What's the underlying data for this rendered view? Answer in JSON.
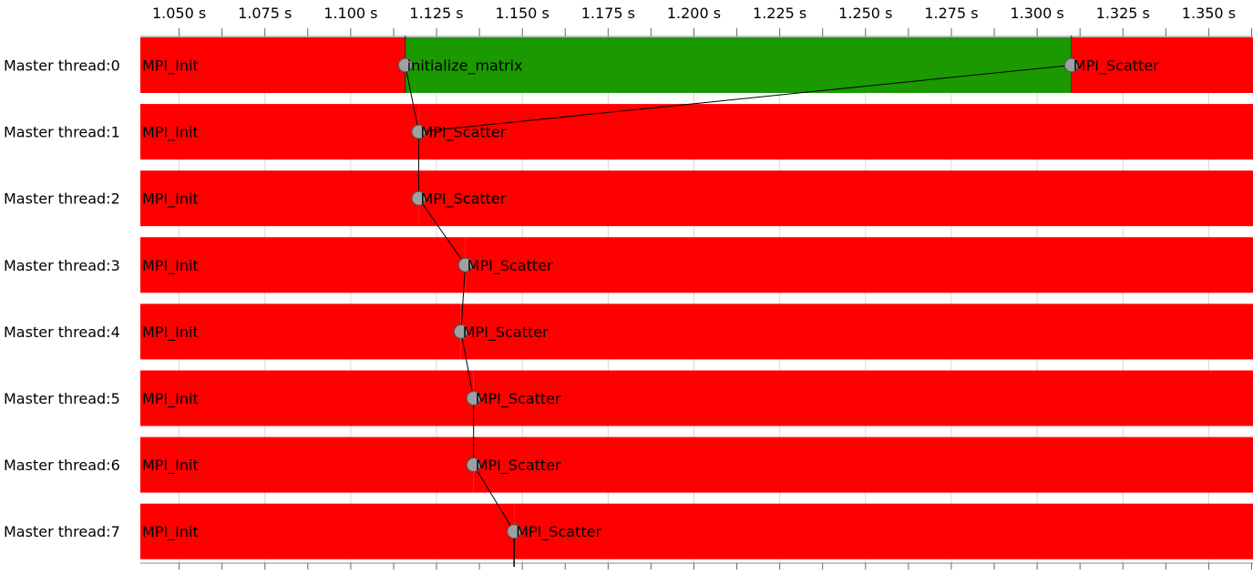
{
  "timeline": {
    "axis": {
      "tick_labels": [
        "1.050 s",
        "1.075 s",
        "1.100 s",
        "1.125 s",
        "1.150 s",
        "1.175 s",
        "1.200 s",
        "1.225 s",
        "1.250 s",
        "1.275 s",
        "1.300 s",
        "1.325 s",
        "1.350 s"
      ],
      "tick_values": [
        1.05,
        1.075,
        1.1,
        1.125,
        1.15,
        1.175,
        1.2,
        1.225,
        1.25,
        1.275,
        1.3,
        1.325,
        1.35
      ],
      "range": [
        1.0387,
        1.3629
      ],
      "minor_step": 0.0125
    },
    "colors": {
      "mpi": "#ff0000",
      "compute": "#1a9900",
      "marker_fill": "#a0a0a0",
      "marker_stroke": "#555555",
      "line": "#000000",
      "gridline": "#d8d8d8"
    },
    "threads": [
      {
        "label": "Master thread:0",
        "segments": [
          {
            "name": "MPI_Init",
            "start": 1.0387,
            "end": 1.1159,
            "kind": "mpi"
          },
          {
            "name": "initialize_matrix",
            "start": 1.1159,
            "end": 1.31,
            "kind": "compute"
          },
          {
            "name": "MPI_Scatter",
            "start": 1.31,
            "end": 1.3629,
            "kind": "mpi"
          }
        ]
      },
      {
        "label": "Master thread:1",
        "segments": [
          {
            "name": "MPI_Init",
            "start": 1.0387,
            "end": 1.1198,
            "kind": "mpi"
          },
          {
            "name": "MPI_Scatter",
            "start": 1.1198,
            "end": 1.3629,
            "kind": "mpi"
          }
        ]
      },
      {
        "label": "Master thread:2",
        "segments": [
          {
            "name": "MPI_Init",
            "start": 1.0387,
            "end": 1.1198,
            "kind": "mpi"
          },
          {
            "name": "MPI_Scatter",
            "start": 1.1198,
            "end": 1.3629,
            "kind": "mpi"
          }
        ]
      },
      {
        "label": "Master thread:3",
        "segments": [
          {
            "name": "MPI_Init",
            "start": 1.0387,
            "end": 1.1334,
            "kind": "mpi"
          },
          {
            "name": "MPI_Scatter",
            "start": 1.1334,
            "end": 1.3629,
            "kind": "mpi"
          }
        ]
      },
      {
        "label": "Master thread:4",
        "segments": [
          {
            "name": "MPI_Init",
            "start": 1.0387,
            "end": 1.1321,
            "kind": "mpi"
          },
          {
            "name": "MPI_Scatter",
            "start": 1.1321,
            "end": 1.3629,
            "kind": "mpi"
          }
        ]
      },
      {
        "label": "Master thread:5",
        "segments": [
          {
            "name": "MPI_Init",
            "start": 1.0387,
            "end": 1.1358,
            "kind": "mpi"
          },
          {
            "name": "MPI_Scatter",
            "start": 1.1358,
            "end": 1.3629,
            "kind": "mpi"
          }
        ]
      },
      {
        "label": "Master thread:6",
        "segments": [
          {
            "name": "MPI_Init",
            "start": 1.0387,
            "end": 1.1358,
            "kind": "mpi"
          },
          {
            "name": "MPI_Scatter",
            "start": 1.1358,
            "end": 1.3629,
            "kind": "mpi"
          }
        ]
      },
      {
        "label": "Master thread:7",
        "segments": [
          {
            "name": "MPI_Init",
            "start": 1.0387,
            "end": 1.1476,
            "kind": "mpi"
          },
          {
            "name": "MPI_Scatter",
            "start": 1.1476,
            "end": 1.3629,
            "kind": "mpi"
          }
        ]
      }
    ],
    "message_path": [
      {
        "thread": 0,
        "time": 1.1159
      },
      {
        "thread": 1,
        "time": 1.1198
      },
      {
        "thread": 0,
        "time": 1.31
      },
      {
        "thread": 1,
        "time": 1.1198
      },
      {
        "thread": 2,
        "time": 1.1198
      },
      {
        "thread": 3,
        "time": 1.1334
      },
      {
        "thread": 4,
        "time": 1.1321
      },
      {
        "thread": 5,
        "time": 1.1358
      },
      {
        "thread": 6,
        "time": 1.1358
      },
      {
        "thread": 7,
        "time": 1.1476
      }
    ]
  }
}
